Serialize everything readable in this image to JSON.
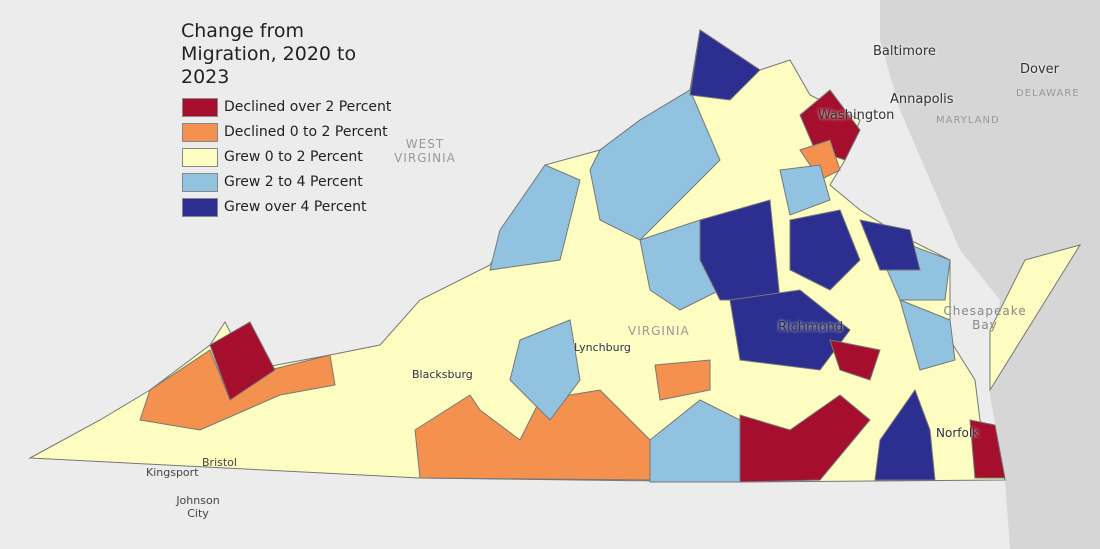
{
  "legend": {
    "title": "Change from Migration, 2020 to 2023",
    "items": [
      {
        "label": "Declined over 2 Percent",
        "color": "#a50f2d"
      },
      {
        "label": "Declined 0 to 2 Percent",
        "color": "#f4914f"
      },
      {
        "label": "Grew 0 to 2 Percent",
        "color": "#fdfdc2"
      },
      {
        "label": "Grew 2 to 4 Percent",
        "color": "#91c3e0"
      },
      {
        "label": "Grew over 4 Percent",
        "color": "#2c2f8f"
      }
    ]
  },
  "places": [
    "Baltimore",
    "Dover",
    "DELAWARE",
    "Annapolis",
    "MARYLAND",
    "Washington",
    "WEST VIRGINIA",
    "VIRGINIA",
    "Richmond",
    "Lynchburg",
    "Blacksburg",
    "Chesapeake Bay",
    "Norfolk",
    "Kingsport",
    "Bristol",
    "Johnson City"
  ]
}
